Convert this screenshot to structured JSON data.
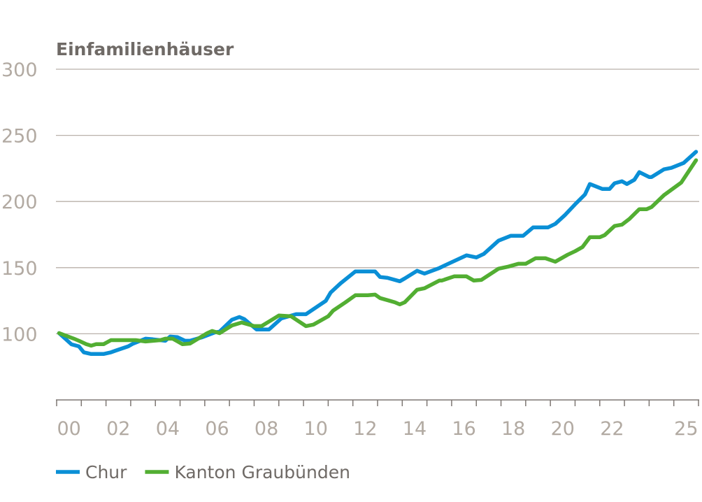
{
  "chart_data": {
    "type": "line",
    "title": "Einfamilienhäuser",
    "xlabel": "",
    "ylabel": "",
    "xlim": [
      2000,
      2026
    ],
    "ylim": [
      50,
      300
    ],
    "grid": true,
    "legend_position": "bottom-left",
    "yticks": [
      100,
      150,
      200,
      250,
      300
    ],
    "ytick_labels": [
      "100",
      "150",
      "200",
      "250",
      "300"
    ],
    "xtick_labels": [
      {
        "year": 2000,
        "label": "00"
      },
      {
        "year": 2002,
        "label": "02"
      },
      {
        "year": 2004,
        "label": "04"
      },
      {
        "year": 2006,
        "label": "06"
      },
      {
        "year": 2008,
        "label": "08"
      },
      {
        "year": 2010,
        "label": "10"
      },
      {
        "year": 2012,
        "label": "12"
      },
      {
        "year": 2014,
        "label": "14"
      },
      {
        "year": 2016,
        "label": "16"
      },
      {
        "year": 2018,
        "label": "18"
      },
      {
        "year": 2020,
        "label": "20"
      },
      {
        "year": 2022,
        "label": "22"
      },
      {
        "year": 2025,
        "label": "25"
      }
    ],
    "series": [
      {
        "name": "Chur",
        "color": "#0a8fd6",
        "x": [
          2000.1,
          2000.6,
          2000.9,
          2001.1,
          2001.4,
          2001.9,
          2002.2,
          2002.4,
          2002.9,
          2003.1,
          2003.6,
          2003.9,
          2004.4,
          2004.6,
          2004.9,
          2005.2,
          2005.4,
          2005.9,
          2006.4,
          2006.6,
          2007.1,
          2007.4,
          2007.6,
          2008.1,
          2008.6,
          2009.1,
          2009.7,
          2010.1,
          2010.9,
          2011.1,
          2011.5,
          2012.1,
          2012.9,
          2013.1,
          2013.4,
          2013.9,
          2014.1,
          2014.6,
          2014.9,
          2015.5,
          2015.8,
          2016.6,
          2017.0,
          2017.3,
          2017.9,
          2018.4,
          2018.9,
          2019.3,
          2019.9,
          2020.2,
          2020.6,
          2021.0,
          2021.4,
          2021.6,
          2022.1,
          2022.4,
          2022.6,
          2022.9,
          2023.1,
          2023.4,
          2023.6,
          2024.0,
          2024.1,
          2024.6,
          2024.9,
          2025.4,
          2025.9
        ],
        "y": [
          100.5,
          92,
          90.5,
          86,
          84.7,
          84.7,
          86,
          87.3,
          90.5,
          92.6,
          96.3,
          95.8,
          94.7,
          97.9,
          97.4,
          94.7,
          94.7,
          97.4,
          101,
          101.6,
          110.6,
          112.7,
          111.1,
          103.2,
          103.2,
          111.6,
          114.8,
          114.8,
          124.9,
          131.2,
          138.1,
          147.1,
          147.1,
          142.9,
          142.3,
          139.7,
          141.8,
          147.6,
          145.5,
          149.7,
          152.4,
          159.3,
          157.7,
          160.3,
          170.4,
          174.1,
          174.1,
          180.4,
          180.4,
          183.1,
          189.9,
          197.9,
          205.3,
          213.2,
          209.5,
          209.5,
          213.8,
          215.3,
          213.2,
          216.4,
          222.2,
          218.5,
          218.5,
          224.3,
          225.4,
          229.1,
          237.6
        ]
      },
      {
        "name": "Kanton Graubünden",
        "color": "#52ae32",
        "x": [
          2000.1,
          2000.7,
          2000.9,
          2001.2,
          2001.4,
          2001.6,
          2001.9,
          2002.2,
          2003.2,
          2003.6,
          2004.2,
          2004.4,
          2004.7,
          2005.1,
          2005.4,
          2006.1,
          2006.3,
          2006.6,
          2007.1,
          2007.5,
          2008.0,
          2008.3,
          2009.0,
          2009.5,
          2009.8,
          2010.1,
          2010.4,
          2011.0,
          2011.2,
          2011.7,
          2012.1,
          2012.6,
          2012.9,
          2013.1,
          2013.4,
          2013.7,
          2013.9,
          2014.1,
          2014.6,
          2014.9,
          2015.5,
          2015.6,
          2016.1,
          2016.6,
          2016.9,
          2017.2,
          2017.9,
          2018.3,
          2018.7,
          2019.0,
          2019.4,
          2019.8,
          2020.2,
          2020.7,
          2021.0,
          2021.3,
          2021.6,
          2022.0,
          2022.2,
          2022.6,
          2022.9,
          2023.2,
          2023.6,
          2023.9,
          2024.1,
          2024.6,
          2025.3,
          2025.9
        ],
        "y": [
          100.5,
          96.3,
          94.7,
          92.1,
          91,
          92.1,
          92.1,
          95.2,
          95.2,
          94.2,
          95.2,
          96.3,
          96.3,
          92.1,
          92.6,
          100.5,
          102.1,
          100.5,
          106.3,
          108.5,
          105.8,
          105.8,
          113.8,
          113.2,
          109.5,
          105.8,
          106.9,
          113.2,
          117.5,
          123.8,
          129.1,
          129.1,
          129.6,
          127,
          125.4,
          123.8,
          122.2,
          123.8,
          133.3,
          134.4,
          140.2,
          140.2,
          143.4,
          143.4,
          140.2,
          140.7,
          149.2,
          150.8,
          152.9,
          152.9,
          157.1,
          157.1,
          154.5,
          159.8,
          162.4,
          165.6,
          173,
          173,
          174.6,
          181.5,
          182.5,
          186.8,
          194.2,
          194.2,
          195.8,
          204.8,
          214.3,
          231.2
        ]
      }
    ]
  }
}
